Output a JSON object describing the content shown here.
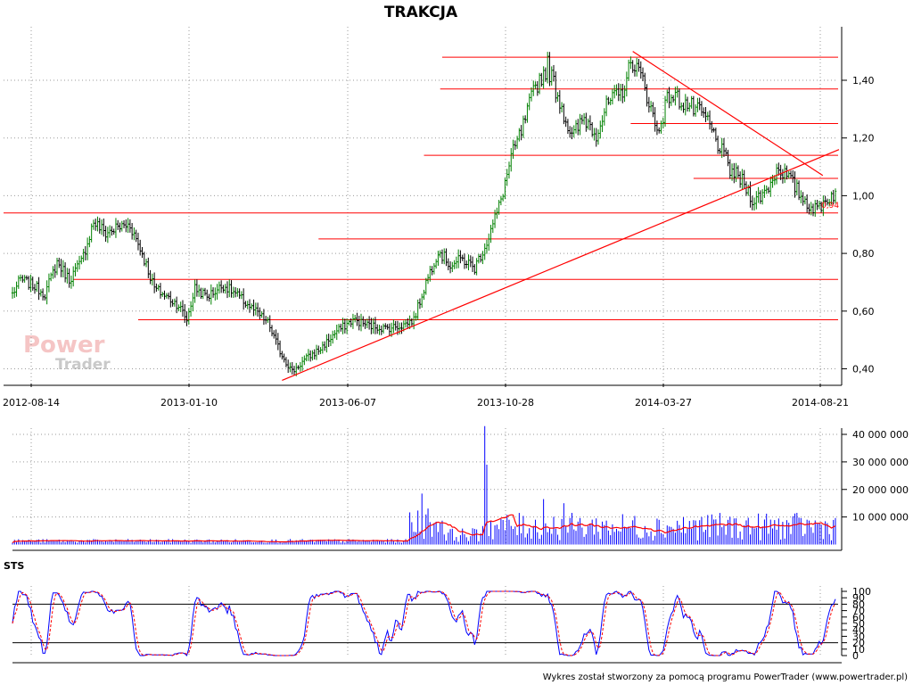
{
  "chart_data": [
    {
      "type": "candlestick",
      "title": "TRAKCJA",
      "x_tick_labels": [
        "2012-08-14",
        "2013-01-10",
        "2013-06-07",
        "2013-10-28",
        "2014-03-27",
        "2014-08-21"
      ],
      "y_tick_labels": [
        "0,40",
        "0,60",
        "0,80",
        "1,00",
        "1,20",
        "1,40"
      ],
      "y_ticks": [
        0.4,
        0.6,
        0.8,
        1.0,
        1.2,
        1.4
      ],
      "ylim": [
        0.36,
        1.53
      ],
      "grid": true,
      "last_value_label": "0,94",
      "price_path": [
        {
          "i": 0,
          "v": 0.66
        },
        {
          "i": 4,
          "v": 0.71
        },
        {
          "i": 10,
          "v": 0.69
        },
        {
          "i": 16,
          "v": 0.66
        },
        {
          "i": 22,
          "v": 0.77
        },
        {
          "i": 28,
          "v": 0.71
        },
        {
          "i": 34,
          "v": 0.77
        },
        {
          "i": 40,
          "v": 0.91
        },
        {
          "i": 46,
          "v": 0.87
        },
        {
          "i": 52,
          "v": 0.89
        },
        {
          "i": 58,
          "v": 0.9
        },
        {
          "i": 64,
          "v": 0.8
        },
        {
          "i": 70,
          "v": 0.68
        },
        {
          "i": 76,
          "v": 0.65
        },
        {
          "i": 82,
          "v": 0.62
        },
        {
          "i": 86,
          "v": 0.57
        },
        {
          "i": 90,
          "v": 0.68
        },
        {
          "i": 96,
          "v": 0.65
        },
        {
          "i": 104,
          "v": 0.69
        },
        {
          "i": 110,
          "v": 0.66
        },
        {
          "i": 118,
          "v": 0.61
        },
        {
          "i": 126,
          "v": 0.56
        },
        {
          "i": 132,
          "v": 0.46
        },
        {
          "i": 138,
          "v": 0.39
        },
        {
          "i": 144,
          "v": 0.43
        },
        {
          "i": 152,
          "v": 0.47
        },
        {
          "i": 160,
          "v": 0.53
        },
        {
          "i": 168,
          "v": 0.57
        },
        {
          "i": 176,
          "v": 0.55
        },
        {
          "i": 184,
          "v": 0.54
        },
        {
          "i": 192,
          "v": 0.55
        },
        {
          "i": 198,
          "v": 0.57
        },
        {
          "i": 204,
          "v": 0.7
        },
        {
          "i": 210,
          "v": 0.81
        },
        {
          "i": 216,
          "v": 0.76
        },
        {
          "i": 222,
          "v": 0.78
        },
        {
          "i": 228,
          "v": 0.75
        },
        {
          "i": 234,
          "v": 0.84
        },
        {
          "i": 240,
          "v": 0.96
        },
        {
          "i": 246,
          "v": 1.13
        },
        {
          "i": 252,
          "v": 1.24
        },
        {
          "i": 258,
          "v": 1.38
        },
        {
          "i": 264,
          "v": 1.45
        },
        {
          "i": 270,
          "v": 1.33
        },
        {
          "i": 276,
          "v": 1.2
        },
        {
          "i": 282,
          "v": 1.27
        },
        {
          "i": 288,
          "v": 1.22
        },
        {
          "i": 294,
          "v": 1.32
        },
        {
          "i": 300,
          "v": 1.35
        },
        {
          "i": 306,
          "v": 1.47
        },
        {
          "i": 312,
          "v": 1.38
        },
        {
          "i": 318,
          "v": 1.22
        },
        {
          "i": 324,
          "v": 1.35
        },
        {
          "i": 330,
          "v": 1.33
        },
        {
          "i": 336,
          "v": 1.3
        },
        {
          "i": 342,
          "v": 1.27
        },
        {
          "i": 348,
          "v": 1.18
        },
        {
          "i": 354,
          "v": 1.09
        },
        {
          "i": 360,
          "v": 1.05
        },
        {
          "i": 366,
          "v": 0.98
        },
        {
          "i": 372,
          "v": 1.02
        },
        {
          "i": 378,
          "v": 1.1
        },
        {
          "i": 384,
          "v": 1.05
        },
        {
          "i": 390,
          "v": 0.99
        },
        {
          "i": 396,
          "v": 0.95
        },
        {
          "i": 402,
          "v": 0.99
        },
        {
          "i": 406,
          "v": 1.01
        }
      ],
      "horizontal_levels": [
        {
          "y": 1.48,
          "from_i": 212
        },
        {
          "y": 1.37,
          "from_i": 211
        },
        {
          "y": 1.25,
          "from_i": 305
        },
        {
          "y": 1.14,
          "from_i": 203
        },
        {
          "y": 1.06,
          "from_i": 336
        },
        {
          "y": 0.94,
          "from_i": 0
        },
        {
          "y": 0.85,
          "from_i": 151
        },
        {
          "y": 0.71,
          "from_i": 30
        },
        {
          "y": 0.57,
          "from_i": 62
        }
      ],
      "trendlines": [
        {
          "from": {
            "i": 133,
            "v": 0.36
          },
          "to": {
            "i": 406,
            "v": 1.16
          }
        },
        {
          "from": {
            "i": 306,
            "v": 1.5
          },
          "to": {
            "i": 398,
            "v": 1.07
          }
        }
      ]
    },
    {
      "type": "bar",
      "name": "volume",
      "y_tick_labels": [
        "10 000 000",
        "20 000 000",
        "30 000 000",
        "40 000 000"
      ],
      "y_ticks": [
        10000000,
        20000000,
        30000000,
        40000000
      ],
      "ylim": [
        0,
        44000000
      ],
      "grid": true,
      "volume_peak": {
        "i": 233,
        "v": 43000000
      }
    },
    {
      "type": "line",
      "title": "STS",
      "y_tick_labels": [
        "0",
        "10",
        "20",
        "30",
        "40",
        "50",
        "60",
        "70",
        "80",
        "90",
        "100"
      ],
      "y_ticks": [
        0,
        10,
        20,
        30,
        40,
        50,
        60,
        70,
        80,
        90,
        100
      ],
      "ylim": [
        0,
        100
      ],
      "reference_lines": [
        20,
        80
      ],
      "grid": true
    }
  ],
  "colors": {
    "level_lines": "#ff0000",
    "rising_price": "#008000",
    "falling_price": "#000000",
    "volume_bars": "#0000ff",
    "volume_avg": "#ff0000",
    "sts_k": "#0000ff",
    "sts_d": "#ff0000"
  },
  "logo": {
    "line1": "Power",
    "line2": "Trader"
  },
  "footer": "Wykres został stworzony za pomocą programu PowerTrader (www.powertrader.pl)"
}
